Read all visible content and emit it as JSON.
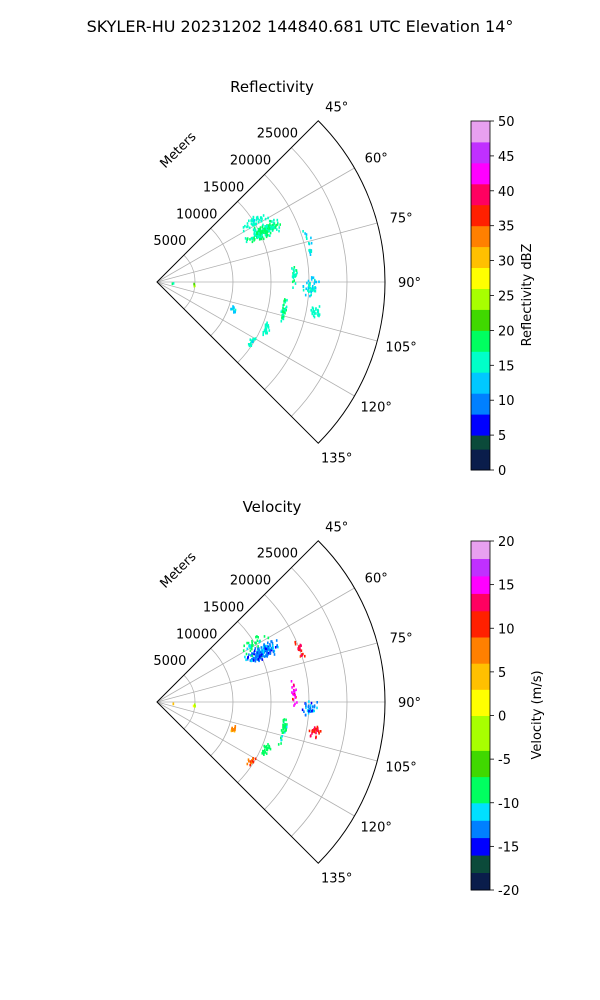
{
  "page_title": "SKYLER-HU  20231202  144840.681 UTC Elevation 14°",
  "chart_data": [
    {
      "type": "polar-sector",
      "title": "Reflectivity",
      "radial_label": "Meters",
      "radial_ticks": [
        "5000",
        "10000",
        "15000",
        "20000",
        "25000"
      ],
      "radial_tick_values": [
        5000,
        10000,
        15000,
        20000,
        25000
      ],
      "r_max": 30000,
      "angular_range": [
        45,
        135
      ],
      "angle_ticks": [
        "45°",
        "60°",
        "75°",
        "90°",
        "105°",
        "120°",
        "135°"
      ],
      "angle_tick_values": [
        45,
        60,
        75,
        90,
        105,
        120,
        135
      ],
      "grid": true,
      "colorbar": {
        "label": "Reflectivity dBZ",
        "range": [
          0,
          50
        ],
        "ticks": [
          "0",
          "5",
          "10",
          "15",
          "20",
          "25",
          "30",
          "35",
          "40",
          "45",
          "50"
        ],
        "tick_values": [
          0,
          5,
          10,
          15,
          20,
          25,
          30,
          35,
          40,
          45,
          50
        ],
        "stops": [
          {
            "v": 0,
            "color": "#0a1d4b"
          },
          {
            "v": 3,
            "color": "#0b4a3a"
          },
          {
            "v": 5,
            "color": "#0000ff"
          },
          {
            "v": 8,
            "color": "#0080ff"
          },
          {
            "v": 11,
            "color": "#00c8ff"
          },
          {
            "v": 14,
            "color": "#00ffc8"
          },
          {
            "v": 17,
            "color": "#00ff60"
          },
          {
            "v": 20,
            "color": "#40d800"
          },
          {
            "v": 23,
            "color": "#a8ff00"
          },
          {
            "v": 26,
            "color": "#ffff00"
          },
          {
            "v": 29,
            "color": "#ffc000"
          },
          {
            "v": 32,
            "color": "#ff8000"
          },
          {
            "v": 35,
            "color": "#ff2000"
          },
          {
            "v": 38,
            "color": "#ff0060"
          },
          {
            "v": 41,
            "color": "#ff00ff"
          },
          {
            "v": 44,
            "color": "#c030ff"
          },
          {
            "v": 47,
            "color": "#e8a0f0"
          },
          {
            "v": 50,
            "color": "#fff0ff"
          }
        ]
      },
      "echo_regions": [
        {
          "az": 64,
          "r": 15500,
          "dr": 3000,
          "daz": 4,
          "count": 170,
          "value": 17,
          "spread": 3
        },
        {
          "az": 58,
          "r": 15000,
          "dr": 2500,
          "daz": 4,
          "count": 40,
          "value": 15,
          "spread": 2
        },
        {
          "az": 92,
          "r": 20000,
          "dr": 1400,
          "daz": 5,
          "count": 45,
          "value": 14,
          "spread": 2
        },
        {
          "az": 100,
          "r": 21000,
          "dr": 1000,
          "daz": 3,
          "count": 25,
          "value": 15,
          "spread": 2
        },
        {
          "az": 86,
          "r": 18000,
          "dr": 500,
          "daz": 7,
          "count": 25,
          "value": 16,
          "spread": 4
        },
        {
          "az": 102,
          "r": 17000,
          "dr": 500,
          "daz": 8,
          "count": 35,
          "value": 17,
          "spread": 3
        },
        {
          "az": 113,
          "r": 15500,
          "dr": 600,
          "daz": 5,
          "count": 25,
          "value": 16,
          "spread": 2
        },
        {
          "az": 122,
          "r": 14500,
          "dr": 600,
          "daz": 4,
          "count": 15,
          "value": 15,
          "spread": 2
        },
        {
          "az": 109,
          "r": 10500,
          "dr": 500,
          "daz": 3,
          "count": 12,
          "value": 13,
          "spread": 2
        },
        {
          "az": 75,
          "r": 20500,
          "dr": 600,
          "daz": 10,
          "count": 15,
          "value": 14,
          "spread": 3
        },
        {
          "az": 94,
          "r": 4800,
          "dr": 300,
          "daz": 4,
          "count": 4,
          "value": 24,
          "spread": 3
        },
        {
          "az": 92,
          "r": 2000,
          "dr": 300,
          "daz": 3,
          "count": 2,
          "value": 16,
          "spread": 3
        }
      ]
    },
    {
      "type": "polar-sector",
      "title": "Velocity",
      "radial_label": "Meters",
      "radial_ticks": [
        "5000",
        "10000",
        "15000",
        "20000",
        "25000"
      ],
      "radial_tick_values": [
        5000,
        10000,
        15000,
        20000,
        25000
      ],
      "r_max": 30000,
      "angular_range": [
        45,
        135
      ],
      "angle_ticks": [
        "45°",
        "60°",
        "75°",
        "90°",
        "105°",
        "120°",
        "135°"
      ],
      "angle_tick_values": [
        45,
        60,
        75,
        90,
        105,
        120,
        135
      ],
      "grid": true,
      "colorbar": {
        "label": "Velocity (m/s)",
        "range": [
          -20,
          20
        ],
        "ticks": [
          "-20",
          "-15",
          "-10",
          "-5",
          "0",
          "5",
          "10",
          "15",
          "20"
        ],
        "tick_values": [
          -20,
          -15,
          -10,
          -5,
          0,
          5,
          10,
          15,
          20
        ],
        "stops": [
          {
            "v": -20,
            "color": "#0a1d4b"
          },
          {
            "v": -18,
            "color": "#0b4a3a"
          },
          {
            "v": -16,
            "color": "#0000ff"
          },
          {
            "v": -14,
            "color": "#0080ff"
          },
          {
            "v": -12,
            "color": "#00e0ff"
          },
          {
            "v": -10,
            "color": "#00ff60"
          },
          {
            "v": -7,
            "color": "#40d800"
          },
          {
            "v": -4,
            "color": "#a8ff00"
          },
          {
            "v": 0,
            "color": "#ffff00"
          },
          {
            "v": 3,
            "color": "#ffc000"
          },
          {
            "v": 6,
            "color": "#ff8000"
          },
          {
            "v": 9,
            "color": "#ff2000"
          },
          {
            "v": 12,
            "color": "#ff0060"
          },
          {
            "v": 14,
            "color": "#ff00ff"
          },
          {
            "v": 16,
            "color": "#c030ff"
          },
          {
            "v": 18,
            "color": "#e8a0f0"
          },
          {
            "v": 20,
            "color": "#fff0ff"
          }
        ]
      },
      "echo_regions": [
        {
          "az": 64,
          "r": 15500,
          "dr": 3000,
          "daz": 4,
          "count": 170,
          "value": -13,
          "spread": 4
        },
        {
          "az": 58,
          "r": 15000,
          "dr": 2500,
          "daz": 4,
          "count": 30,
          "value": -9,
          "spread": 3
        },
        {
          "az": 70,
          "r": 20000,
          "dr": 600,
          "daz": 6,
          "count": 20,
          "value": 12,
          "spread": 5
        },
        {
          "az": 92,
          "r": 20000,
          "dr": 1200,
          "daz": 4,
          "count": 35,
          "value": -13,
          "spread": 3
        },
        {
          "az": 100,
          "r": 21000,
          "dr": 1000,
          "daz": 3,
          "count": 30,
          "value": 12,
          "spread": 2
        },
        {
          "az": 86,
          "r": 18000,
          "dr": 500,
          "daz": 7,
          "count": 25,
          "value": 14,
          "spread": 4
        },
        {
          "az": 102,
          "r": 17000,
          "dr": 500,
          "daz": 8,
          "count": 35,
          "value": -9,
          "spread": 2
        },
        {
          "az": 113,
          "r": 15500,
          "dr": 600,
          "daz": 5,
          "count": 25,
          "value": -8,
          "spread": 2
        },
        {
          "az": 122,
          "r": 14500,
          "dr": 600,
          "daz": 4,
          "count": 15,
          "value": 9,
          "spread": 3
        },
        {
          "az": 109,
          "r": 10500,
          "dr": 500,
          "daz": 3,
          "count": 14,
          "value": 7,
          "spread": 3
        },
        {
          "az": 94,
          "r": 4800,
          "dr": 300,
          "daz": 4,
          "count": 4,
          "value": 0,
          "spread": 4
        },
        {
          "az": 92,
          "r": 2000,
          "dr": 300,
          "daz": 3,
          "count": 2,
          "value": 5,
          "spread": 3
        }
      ]
    }
  ]
}
